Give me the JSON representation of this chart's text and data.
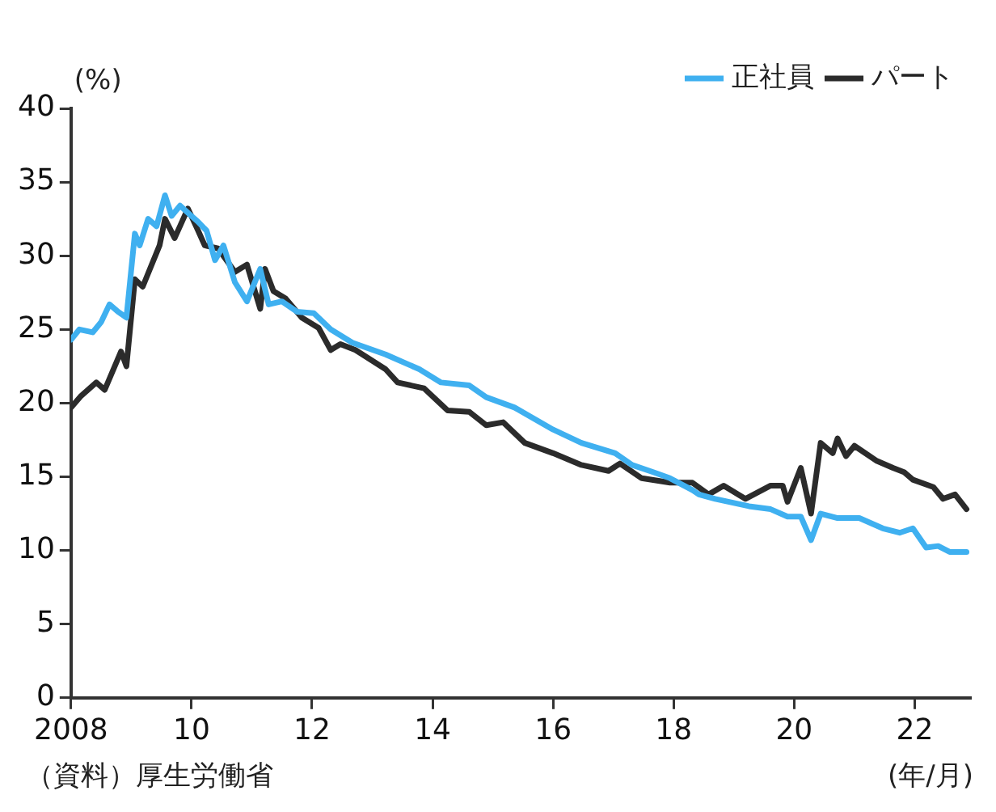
{
  "chart_data": {
    "type": "line",
    "ylabel": "(%)",
    "annotations": [
      "（資料）厚生労働省",
      "(年/月)"
    ],
    "legend": "top right",
    "grid": false,
    "marker": "none",
    "line_style": "solid",
    "xlim": [
      2008,
      2022.92
    ],
    "xticks": [
      {
        "value": 2008,
        "label": "2008"
      },
      {
        "value": 2010,
        "label": "10"
      },
      {
        "value": 2012,
        "label": "12"
      },
      {
        "value": 2014,
        "label": "14"
      },
      {
        "value": 2016,
        "label": "16"
      },
      {
        "value": 2018,
        "label": "18"
      },
      {
        "value": 2020,
        "label": "20"
      },
      {
        "value": 2022,
        "label": "22"
      }
    ],
    "ylim": [
      0,
      40
    ],
    "yticks": [
      0,
      5,
      10,
      15,
      20,
      25,
      30,
      35,
      40
    ],
    "series": [
      {
        "name": "正社員",
        "color": "#3fb0f0",
        "x": [
          2008.0,
          2008.14,
          2008.36,
          2008.5,
          2008.64,
          2008.78,
          2008.92,
          2009.06,
          2009.14,
          2009.28,
          2009.42,
          2009.56,
          2009.67,
          2009.81,
          2009.97,
          2010.11,
          2010.25,
          2010.39,
          2010.53,
          2010.72,
          2010.92,
          2011.14,
          2011.28,
          2011.5,
          2011.75,
          2012.03,
          2012.31,
          2012.67,
          2013.22,
          2013.78,
          2014.14,
          2014.61,
          2014.89,
          2015.36,
          2016.0,
          2016.47,
          2017.03,
          2017.31,
          2017.67,
          2017.94,
          2018.31,
          2018.42,
          2018.69,
          2019.25,
          2019.61,
          2019.89,
          2020.11,
          2020.28,
          2020.44,
          2020.72,
          2021.08,
          2021.47,
          2021.75,
          2021.97,
          2022.19,
          2022.39,
          2022.58,
          2022.86
        ],
        "values": [
          24.3,
          25.0,
          24.8,
          25.5,
          26.7,
          26.2,
          25.8,
          31.5,
          30.7,
          32.5,
          32.0,
          34.1,
          32.7,
          33.4,
          32.8,
          32.3,
          31.7,
          29.7,
          30.7,
          28.2,
          26.9,
          29.1,
          26.7,
          26.9,
          26.2,
          26.1,
          25.0,
          24.1,
          23.3,
          22.3,
          21.4,
          21.2,
          20.4,
          19.7,
          18.2,
          17.3,
          16.6,
          15.8,
          15.3,
          14.9,
          14.1,
          13.8,
          13.5,
          13.0,
          12.8,
          12.3,
          12.3,
          10.7,
          12.5,
          12.2,
          12.2,
          11.5,
          11.2,
          11.5,
          10.2,
          10.3,
          9.9,
          9.9
        ]
      },
      {
        "name": "パート",
        "color": "#2b2b2b",
        "x": [
          2008.0,
          2008.17,
          2008.42,
          2008.56,
          2008.83,
          2008.92,
          2009.06,
          2009.19,
          2009.47,
          2009.56,
          2009.72,
          2009.94,
          2010.11,
          2010.22,
          2010.44,
          2010.72,
          2010.92,
          2011.14,
          2011.22,
          2011.36,
          2011.56,
          2011.83,
          2012.11,
          2012.31,
          2012.47,
          2012.72,
          2013.22,
          2013.42,
          2013.86,
          2014.25,
          2014.61,
          2014.89,
          2015.17,
          2015.53,
          2016.0,
          2016.47,
          2016.92,
          2017.11,
          2017.47,
          2017.94,
          2018.31,
          2018.58,
          2018.83,
          2019.19,
          2019.61,
          2019.81,
          2019.89,
          2020.11,
          2020.28,
          2020.44,
          2020.64,
          2020.72,
          2020.86,
          2021.0,
          2021.36,
          2021.64,
          2021.83,
          2021.97,
          2022.31,
          2022.47,
          2022.67,
          2022.86
        ],
        "values": [
          19.7,
          20.5,
          21.4,
          20.9,
          23.5,
          22.5,
          28.4,
          27.9,
          30.7,
          32.5,
          31.2,
          33.2,
          31.7,
          30.7,
          30.5,
          28.9,
          29.4,
          26.4,
          29.1,
          27.6,
          27.1,
          25.8,
          25.1,
          23.6,
          24.0,
          23.6,
          22.3,
          21.4,
          21.0,
          19.5,
          19.4,
          18.5,
          18.7,
          17.3,
          16.6,
          15.8,
          15.4,
          15.9,
          14.9,
          14.6,
          14.6,
          13.8,
          14.4,
          13.5,
          14.4,
          14.4,
          13.3,
          15.6,
          12.5,
          17.3,
          16.6,
          17.6,
          16.4,
          17.1,
          16.1,
          15.6,
          15.3,
          14.8,
          14.3,
          13.5,
          13.8,
          12.8
        ]
      }
    ]
  }
}
